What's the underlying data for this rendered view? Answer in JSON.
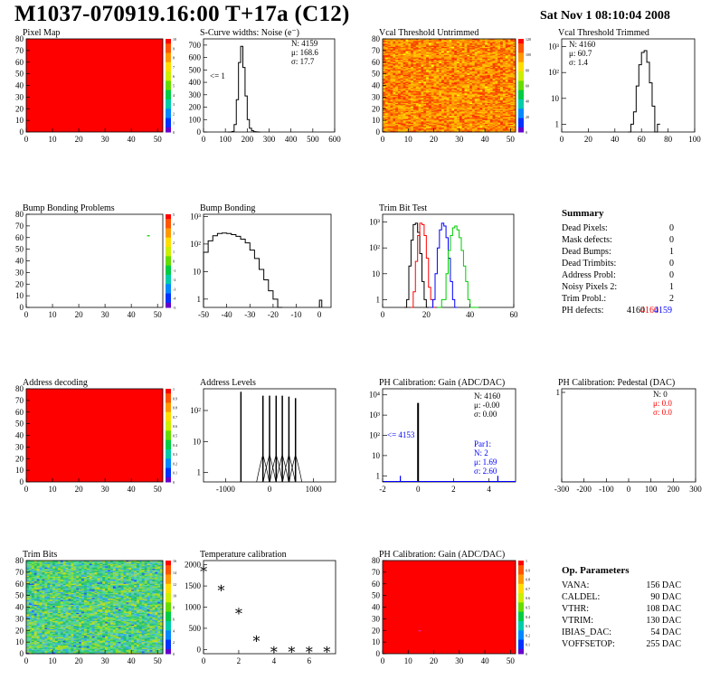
{
  "header": {
    "title": "M1037-070919.16:00 T+17a (C12)",
    "date": "Sat Nov  1 08:10:04 2008"
  },
  "colors": {
    "frame_red": "#ff0000",
    "fill_teal": "#3f9f8f",
    "black": "#000000",
    "red": "#ff0000",
    "blue": "#0000ff",
    "green": "#00cc00"
  },
  "chart_data": [
    {
      "id": "p1",
      "type": "heatmap",
      "title": "Pixel Map",
      "xlim": [
        0,
        52
      ],
      "ylim": [
        0,
        80
      ],
      "xticks": [
        0,
        10,
        20,
        30,
        40,
        50
      ],
      "yticks": [
        0,
        10,
        20,
        30,
        40,
        50,
        60,
        70,
        80
      ],
      "fill": "uniform-red",
      "palette_labels": [
        "0",
        "1",
        "2",
        "3",
        "4",
        "5",
        "6",
        "7",
        "8",
        "9",
        "10"
      ]
    },
    {
      "id": "p2",
      "type": "line",
      "title": "S-Curve widths: Noise (e⁻)",
      "xlim": [
        0,
        600
      ],
      "ylim": [
        0,
        750
      ],
      "xticks": [
        0,
        100,
        200,
        300,
        400,
        500,
        600
      ],
      "yticks": [
        0,
        100,
        200,
        300,
        400,
        500,
        600,
        700
      ],
      "x": [
        110,
        120,
        130,
        140,
        150,
        160,
        170,
        180,
        190,
        200,
        210,
        220,
        230,
        240,
        250
      ],
      "values": [
        0,
        0,
        5,
        60,
        260,
        560,
        690,
        520,
        290,
        100,
        30,
        10,
        3,
        1,
        0
      ],
      "stats": [
        "N: 4159",
        "μ: 168.6",
        "σ: 17.7"
      ],
      "annotation": "<= 1"
    },
    {
      "id": "p3",
      "type": "heatmap",
      "title": "Vcal Threshold Untrimmed",
      "xlim": [
        0,
        52
      ],
      "ylim": [
        0,
        80
      ],
      "xticks": [
        0,
        10,
        20,
        30,
        40,
        50
      ],
      "yticks": [
        0,
        10,
        20,
        30,
        40,
        50,
        60,
        70,
        80
      ],
      "fill": "random-orange",
      "palette_labels": [
        "0",
        "20",
        "40",
        "60",
        "80",
        "100",
        "120"
      ]
    },
    {
      "id": "p4",
      "type": "line",
      "title": "Vcal Threshold Trimmed",
      "log_y": true,
      "xlim": [
        0,
        100
      ],
      "ylim": [
        0.5,
        2000
      ],
      "xticks": [
        0,
        20,
        40,
        60,
        80,
        100
      ],
      "ytick_labels": [
        "1",
        "10",
        "10²",
        "10³"
      ],
      "x": [
        50,
        52,
        54,
        56,
        58,
        60,
        62,
        64,
        66,
        68,
        70,
        72
      ],
      "values": [
        0,
        1,
        3,
        30,
        200,
        600,
        700,
        250,
        40,
        5,
        0,
        1
      ],
      "stats": [
        "N: 4160",
        "μ: 60.7",
        "σ:  1.4"
      ]
    },
    {
      "id": "p5",
      "type": "heatmap",
      "title": "Bump Bonding Problems",
      "xlim": [
        0,
        52
      ],
      "ylim": [
        0,
        80
      ],
      "xticks": [
        0,
        10,
        20,
        30,
        40,
        50
      ],
      "yticks": [
        0,
        10,
        20,
        30,
        40,
        50,
        60,
        70,
        80
      ],
      "fill": "empty",
      "palette_labels": [
        "-5",
        "-4",
        "-3",
        "-2",
        "-1",
        "0",
        "1",
        "2",
        "3",
        "4",
        "5"
      ]
    },
    {
      "id": "p6",
      "type": "line",
      "title": "Bump Bonding",
      "log_y": true,
      "xlim": [
        -50,
        5
      ],
      "ylim": [
        0.5,
        1200
      ],
      "xticks": [
        -50,
        -40,
        -30,
        -20,
        -10,
        0
      ],
      "ytick_labels": [
        "1",
        "10",
        "10²",
        "10³"
      ],
      "x": [
        -50,
        -48,
        -46,
        -44,
        -42,
        -40,
        -38,
        -36,
        -34,
        -32,
        -30,
        -28,
        -26,
        -24,
        -22,
        -20,
        -18
      ],
      "values": [
        50,
        130,
        200,
        240,
        250,
        240,
        220,
        190,
        150,
        110,
        60,
        30,
        12,
        5,
        2,
        1,
        0
      ]
    },
    {
      "id": "p7",
      "type": "line",
      "title": "Trim Bit Test",
      "log_y": true,
      "xlim": [
        0,
        60
      ],
      "ylim": [
        0.5,
        2000
      ],
      "xticks": [
        0,
        20,
        40,
        60
      ],
      "ytick_labels": [
        "1",
        "10",
        "10²",
        "10³"
      ],
      "series": [
        {
          "color": "#000000",
          "x": [
            10,
            11,
            12,
            13,
            14,
            15,
            16,
            17,
            18,
            19,
            20
          ],
          "values": [
            0,
            1,
            20,
            200,
            800,
            900,
            400,
            60,
            5,
            1,
            0
          ]
        },
        {
          "color": "#ff0000",
          "x": [
            13,
            14,
            15,
            16,
            17,
            18,
            19,
            20,
            21,
            22,
            23
          ],
          "values": [
            0,
            2,
            30,
            300,
            900,
            800,
            300,
            40,
            3,
            1,
            0
          ]
        },
        {
          "color": "#0000ff",
          "x": [
            22,
            23,
            24,
            25,
            26,
            27,
            28,
            29,
            30,
            31,
            32,
            33
          ],
          "values": [
            0,
            1,
            10,
            100,
            500,
            900,
            700,
            250,
            40,
            5,
            1,
            0
          ]
        },
        {
          "color": "#00cc00",
          "x": [
            25,
            27,
            29,
            30,
            31,
            32,
            33,
            34,
            35,
            36,
            37,
            38,
            39,
            40,
            42
          ],
          "values": [
            0,
            1,
            10,
            80,
            300,
            600,
            700,
            500,
            250,
            80,
            20,
            5,
            1,
            0,
            0
          ]
        }
      ]
    },
    {
      "id": "summary",
      "type": "table",
      "title": "Summary",
      "rows": [
        {
          "label": "Dead Pixels:",
          "value": "0"
        },
        {
          "label": "Mask defects:",
          "value": "0"
        },
        {
          "label": "Dead Bumps:",
          "value": "1"
        },
        {
          "label": "Dead Trimbits:",
          "value": "0"
        },
        {
          "label": "Address Probl:",
          "value": "0"
        },
        {
          "label": "Noisy Pixels 2:",
          "value": "1"
        },
        {
          "label": "Trim Probl.:",
          "value": "2"
        }
      ],
      "ph_defects": {
        "label": "PH defects:",
        "v1": "4160",
        "v2": "4160",
        "v3": "4159"
      }
    },
    {
      "id": "p9",
      "type": "heatmap",
      "title": "Address decoding",
      "xlim": [
        0,
        52
      ],
      "ylim": [
        0,
        80
      ],
      "xticks": [
        0,
        10,
        20,
        30,
        40,
        50
      ],
      "yticks": [
        0,
        10,
        20,
        30,
        40,
        50,
        60,
        70,
        80
      ],
      "fill": "uniform-red",
      "palette_labels": [
        "0",
        "0.1",
        "0.2",
        "0.3",
        "0.4",
        "0.5",
        "0.6",
        "0.7",
        "0.8",
        "0.9",
        "1"
      ]
    },
    {
      "id": "p10",
      "type": "bar",
      "title": "Address Levels",
      "log_y": true,
      "xlim": [
        -1500,
        1500
      ],
      "ylim": [
        0.5,
        500
      ],
      "xticks": [
        -1000,
        0,
        1000
      ],
      "ytick_labels": [
        "1",
        "10",
        "10²"
      ],
      "x": [
        -650,
        -150,
        0,
        150,
        290,
        440,
        590
      ],
      "values": [
        400,
        300,
        300,
        300,
        300,
        280,
        250
      ]
    },
    {
      "id": "p11",
      "type": "bar",
      "title": "PH Calibration: Gain (ADC/DAC)",
      "log_y": true,
      "xlim": [
        -2,
        5.5
      ],
      "ylim": [
        0.5,
        20000
      ],
      "xticks": [
        -2,
        0,
        2,
        4
      ],
      "ytick_labels": [
        "1",
        "10",
        "10²",
        "10³",
        "10⁴"
      ],
      "x": [
        -1,
        0,
        4.5
      ],
      "values": [
        1,
        4000,
        1
      ],
      "stats": [
        "N: 4160",
        "μ: -0.00",
        "σ: 0.00"
      ],
      "annotation": "<= 4153",
      "par_stats": [
        "Par1:",
        "N:    2",
        "μ: 1.69",
        "σ: 2.60"
      ]
    },
    {
      "id": "p12",
      "type": "bar",
      "title": "PH Calibration: Pedestal (DAC)",
      "xlim": [
        -300,
        300
      ],
      "ylim": [
        0,
        1
      ],
      "xticks": [
        -300,
        -200,
        -100,
        0,
        100,
        200,
        300
      ],
      "ytick_labels": [
        "1"
      ],
      "stats": [
        "N:    0"
      ],
      "red_stats": [
        "μ:  0.0",
        "σ:  0.0"
      ]
    },
    {
      "id": "p13",
      "type": "heatmap",
      "title": "Trim Bits",
      "xlim": [
        0,
        52
      ],
      "ylim": [
        0,
        80
      ],
      "xticks": [
        0,
        10,
        20,
        30,
        40,
        50
      ],
      "yticks": [
        0,
        10,
        20,
        30,
        40,
        50,
        60,
        70,
        80
      ],
      "fill": "random-green",
      "palette_labels": [
        "0",
        "2",
        "4",
        "6",
        "8",
        "10",
        "12",
        "14",
        "16"
      ]
    },
    {
      "id": "p14",
      "type": "scatter",
      "title": "Temperature calibration",
      "xlim": [
        0,
        7.5
      ],
      "ylim": [
        -100,
        2100
      ],
      "xticks": [
        0,
        2,
        4,
        6
      ],
      "yticks": [
        0,
        500,
        1000,
        1500,
        2000
      ],
      "x": [
        0,
        1,
        2,
        3,
        4,
        5,
        6,
        7
      ],
      "values": [
        1900,
        1450,
        900,
        250,
        0,
        0,
        0,
        0
      ]
    },
    {
      "id": "p15",
      "type": "heatmap",
      "title": "PH Calibration: Gain (ADC/DAC)",
      "xlim": [
        0,
        52
      ],
      "ylim": [
        0,
        80
      ],
      "xticks": [
        0,
        10,
        20,
        30,
        40,
        50
      ],
      "yticks": [
        0,
        10,
        20,
        30,
        40,
        50,
        60,
        70,
        80
      ],
      "fill": "uniform-red",
      "palette_labels": [
        "0",
        "0.1",
        "0.2",
        "0.3",
        "0.4",
        "0.5",
        "0.6",
        "0.7",
        "0.8",
        "0.9",
        "1"
      ]
    },
    {
      "id": "ops",
      "type": "table",
      "title": "Op. Parameters",
      "rows": [
        {
          "label": "VANA:",
          "value": "156 DAC"
        },
        {
          "label": "CALDEL:",
          "value": "90 DAC"
        },
        {
          "label": "VTHR:",
          "value": "108 DAC"
        },
        {
          "label": "VTRIM:",
          "value": "130 DAC"
        },
        {
          "label": "IBIAS_DAC:",
          "value": "54 DAC"
        },
        {
          "label": "VOFFSETOP:",
          "value": "255 DAC"
        }
      ]
    }
  ]
}
